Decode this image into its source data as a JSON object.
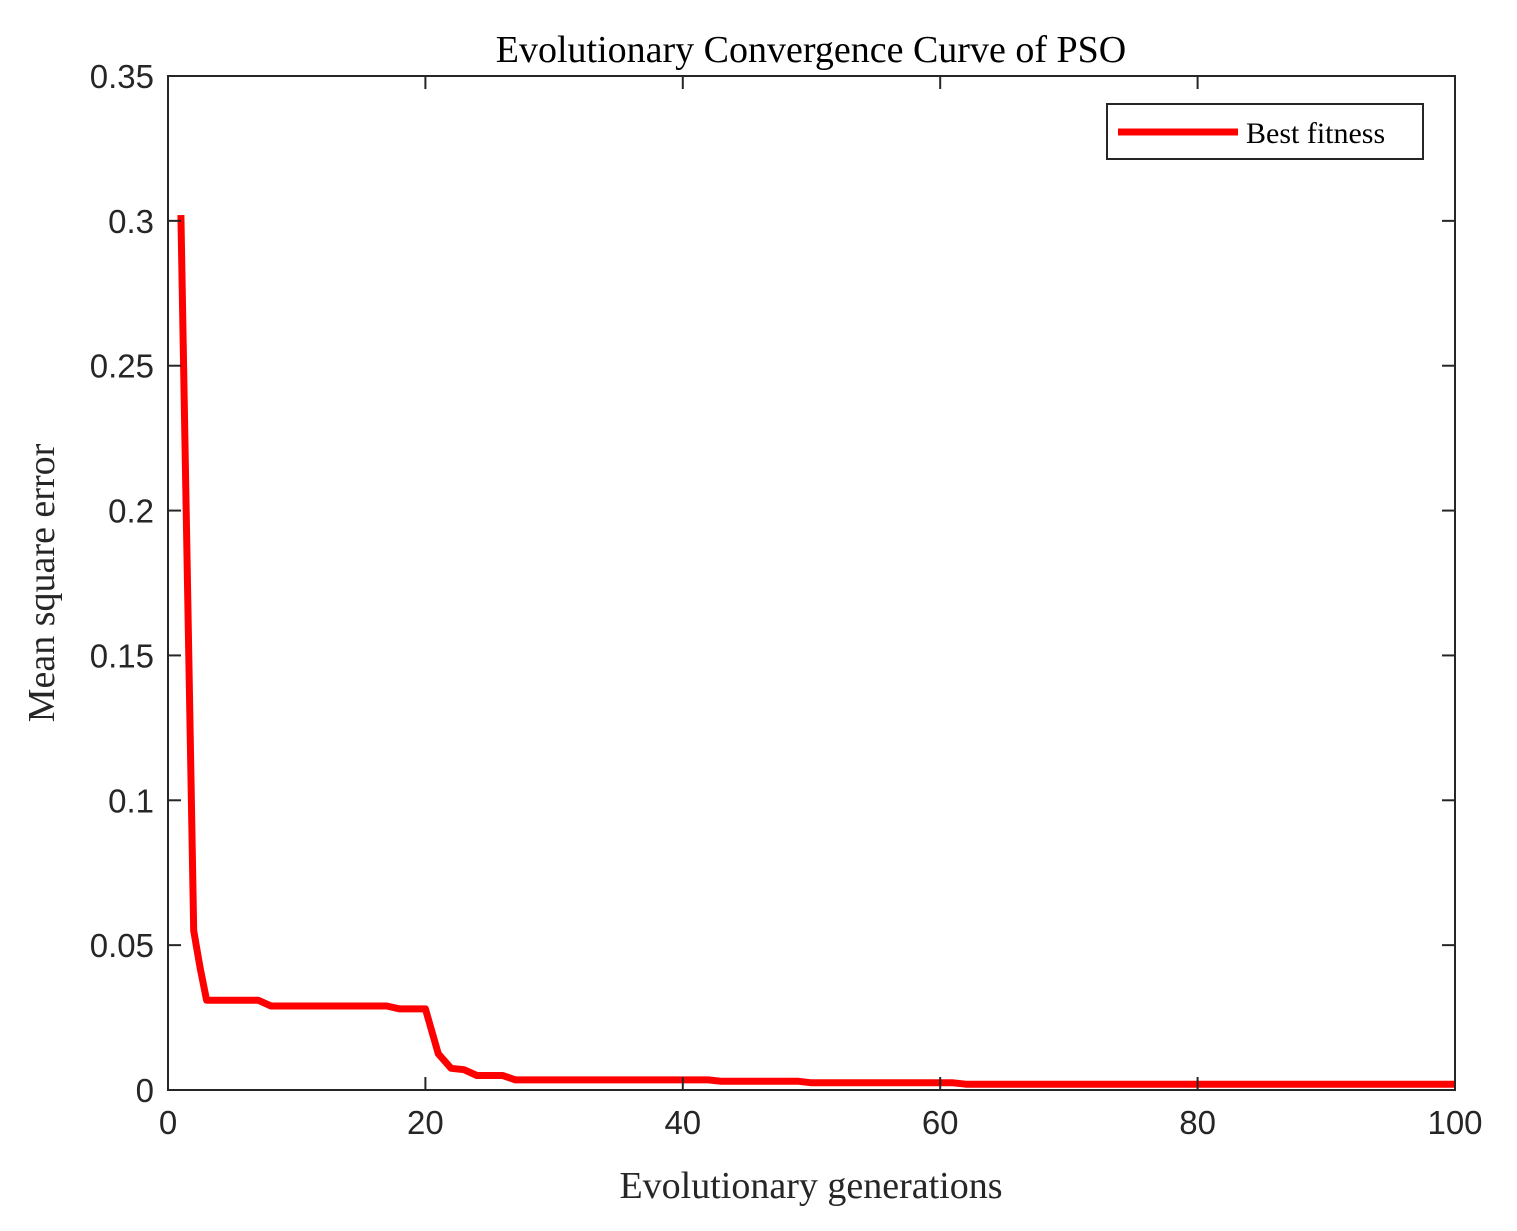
{
  "chart_data": {
    "type": "line",
    "title": "Evolutionary Convergence Curve of PSO",
    "xlabel": "Evolutionary generations",
    "ylabel": "Mean square error",
    "xlim": [
      0,
      100
    ],
    "ylim": [
      0,
      0.35
    ],
    "xticks": [
      0,
      20,
      40,
      60,
      80,
      100
    ],
    "xtick_labels": [
      "0",
      "20",
      "40",
      "60",
      "80",
      "100"
    ],
    "yticks": [
      0,
      0.05,
      0.1,
      0.15,
      0.2,
      0.25,
      0.3,
      0.35
    ],
    "ytick_labels": [
      "0",
      "0.05",
      "0.1",
      "0.15",
      "0.2",
      "0.25",
      "0.3",
      "0.35"
    ],
    "grid": false,
    "legend_position": "top-right",
    "series": [
      {
        "name": "Best fitness",
        "color": "#ff0000",
        "x": [
          1,
          2,
          2.5,
          3,
          7,
          8,
          17,
          18,
          20,
          21,
          22,
          23,
          24,
          26,
          27,
          42,
          43,
          49,
          50,
          61,
          62,
          100
        ],
        "y": [
          0.302,
          0.055,
          0.042,
          0.031,
          0.031,
          0.029,
          0.029,
          0.028,
          0.028,
          0.0125,
          0.0075,
          0.007,
          0.005,
          0.005,
          0.0035,
          0.0035,
          0.003,
          0.003,
          0.0025,
          0.0025,
          0.002,
          0.002
        ]
      }
    ]
  }
}
